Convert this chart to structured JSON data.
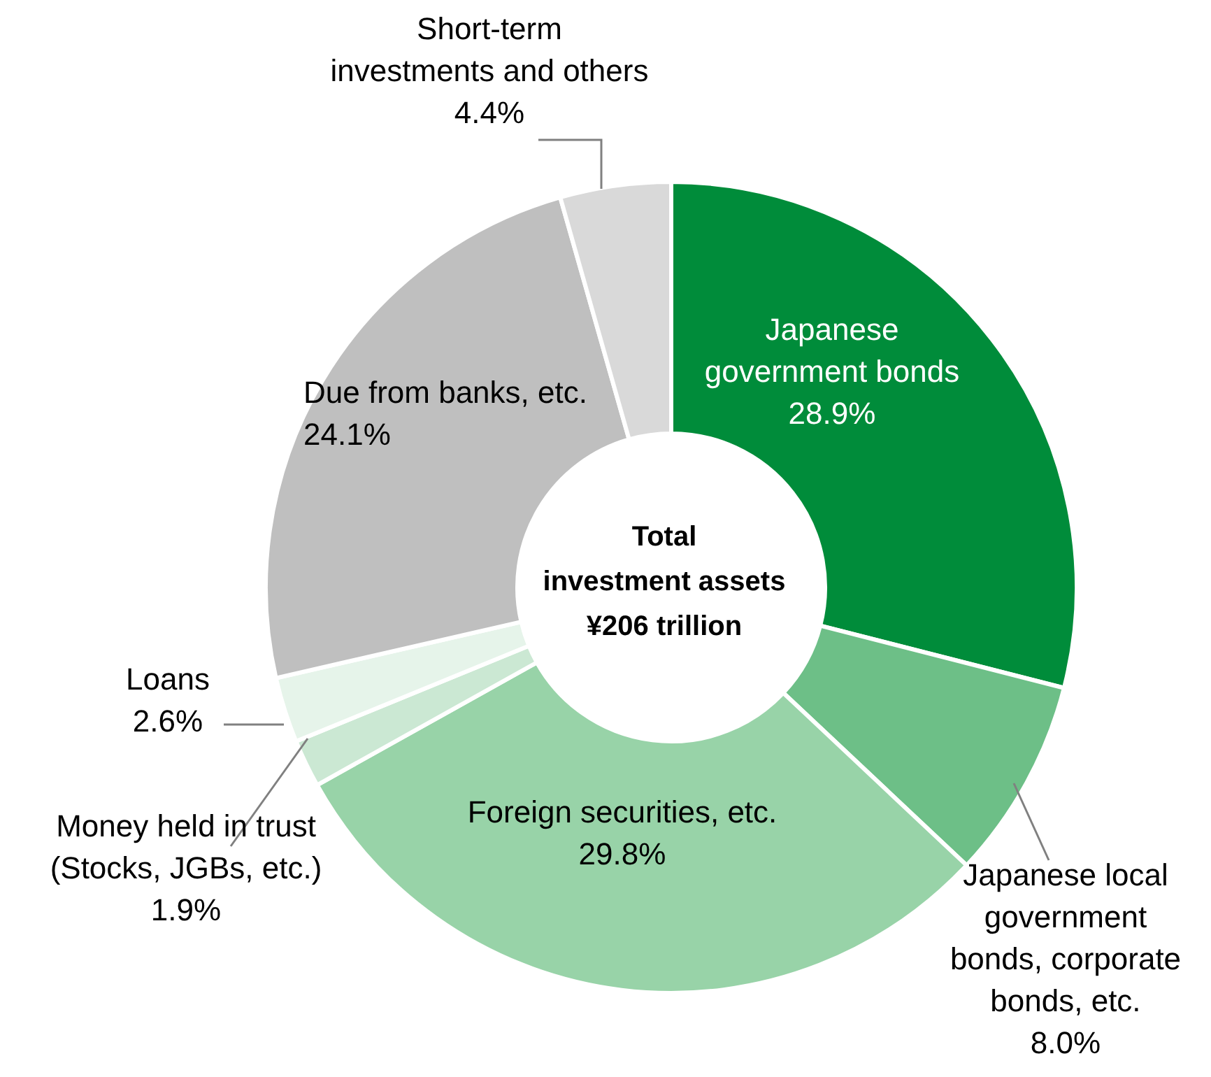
{
  "chart_data": {
    "type": "donut",
    "categories": [
      "Japanese government bonds",
      "Japanese local government bonds, corporate bonds, etc.",
      "Foreign securities, etc.",
      "Money held in trust (Stocks, JGBs, etc.)",
      "Loans",
      "Due from banks, etc.",
      "Short-term investments and others"
    ],
    "values": [
      28.9,
      8.0,
      29.8,
      1.9,
      2.6,
      24.1,
      4.4
    ],
    "value_labels": [
      "28.9%",
      "8.0%",
      "29.8%",
      "1.9%",
      "2.6%",
      "24.1%",
      "4.4%"
    ],
    "colors": [
      "#008c3a",
      "#6dbf87",
      "#98d3a8",
      "#cbe8d3",
      "#e6f4ea",
      "#bfbfbf",
      "#d9d9d9"
    ],
    "annotations": [
      "Total investment assets ¥206 trillion"
    ],
    "legend": false
  }
}
